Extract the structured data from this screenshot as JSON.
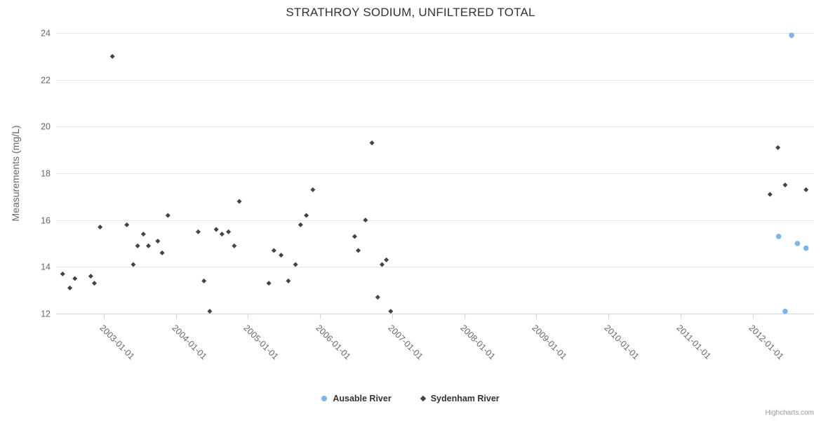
{
  "chart_data": {
    "type": "scatter",
    "title": "STRATHROY SODIUM, UNFILTERED TOTAL",
    "xlabel": "",
    "ylabel": "Measurements (mg/L)",
    "ylim": [
      12,
      24
    ],
    "yticks": [
      12,
      14,
      16,
      18,
      20,
      22,
      24
    ],
    "xlim_decimal_years": [
      2002.34,
      2012.85
    ],
    "xticks": [
      {
        "value": 2003,
        "label": "2003-01-01"
      },
      {
        "value": 2004,
        "label": "2004-01-01"
      },
      {
        "value": 2005,
        "label": "2005-01-01"
      },
      {
        "value": 2006,
        "label": "2006-01-01"
      },
      {
        "value": 2007,
        "label": "2007-01-01"
      },
      {
        "value": 2008,
        "label": "2008-01-01"
      },
      {
        "value": 2009,
        "label": "2009-01-01"
      },
      {
        "value": 2010,
        "label": "2010-01-01"
      },
      {
        "value": 2011,
        "label": "2011-01-01"
      },
      {
        "value": 2012,
        "label": "2012-01-01"
      }
    ],
    "grid": true,
    "legend_position": "bottom-center",
    "x_label_rotation_deg": 45,
    "series": [
      {
        "name": "Ausable River",
        "marker": "circle",
        "color": "#7cb5ec",
        "points": [
          {
            "x": 2012.36,
            "y": 15.3
          },
          {
            "x": 2012.45,
            "y": 12.1
          },
          {
            "x": 2012.54,
            "y": 23.9
          },
          {
            "x": 2012.62,
            "y": 15.0
          },
          {
            "x": 2012.74,
            "y": 14.8
          }
        ]
      },
      {
        "name": "Sydenham River",
        "marker": "diamond",
        "color": "#434348",
        "points": [
          {
            "x": 2002.43,
            "y": 13.7
          },
          {
            "x": 2002.53,
            "y": 13.1
          },
          {
            "x": 2002.6,
            "y": 13.5
          },
          {
            "x": 2002.82,
            "y": 13.6
          },
          {
            "x": 2002.87,
            "y": 13.3
          },
          {
            "x": 2002.95,
            "y": 15.7
          },
          {
            "x": 2003.12,
            "y": 23.0
          },
          {
            "x": 2003.32,
            "y": 15.8
          },
          {
            "x": 2003.41,
            "y": 14.1
          },
          {
            "x": 2003.47,
            "y": 14.9
          },
          {
            "x": 2003.55,
            "y": 15.4
          },
          {
            "x": 2003.62,
            "y": 14.9
          },
          {
            "x": 2003.75,
            "y": 15.1
          },
          {
            "x": 2003.81,
            "y": 14.6
          },
          {
            "x": 2003.89,
            "y": 16.2
          },
          {
            "x": 2004.31,
            "y": 15.5
          },
          {
            "x": 2004.39,
            "y": 13.4
          },
          {
            "x": 2004.47,
            "y": 12.1
          },
          {
            "x": 2004.56,
            "y": 15.6
          },
          {
            "x": 2004.64,
            "y": 15.4
          },
          {
            "x": 2004.73,
            "y": 15.5
          },
          {
            "x": 2004.81,
            "y": 14.9
          },
          {
            "x": 2004.88,
            "y": 16.8
          },
          {
            "x": 2005.29,
            "y": 13.3
          },
          {
            "x": 2005.36,
            "y": 14.7
          },
          {
            "x": 2005.46,
            "y": 14.5
          },
          {
            "x": 2005.56,
            "y": 13.4
          },
          {
            "x": 2005.66,
            "y": 14.1
          },
          {
            "x": 2005.73,
            "y": 15.8
          },
          {
            "x": 2005.81,
            "y": 16.2
          },
          {
            "x": 2005.9,
            "y": 17.3
          },
          {
            "x": 2006.48,
            "y": 15.3
          },
          {
            "x": 2006.53,
            "y": 14.7
          },
          {
            "x": 2006.63,
            "y": 16.0
          },
          {
            "x": 2006.72,
            "y": 19.3
          },
          {
            "x": 2006.8,
            "y": 12.7
          },
          {
            "x": 2006.86,
            "y": 14.1
          },
          {
            "x": 2006.92,
            "y": 14.3
          },
          {
            "x": 2006.98,
            "y": 12.1
          },
          {
            "x": 2012.24,
            "y": 17.1
          },
          {
            "x": 2012.35,
            "y": 19.1
          },
          {
            "x": 2012.45,
            "y": 17.5
          },
          {
            "x": 2012.74,
            "y": 17.3
          }
        ]
      }
    ]
  },
  "credits": {
    "label": "Highcharts.com"
  },
  "colors": {
    "background": "#ffffff",
    "grid": "#e6e6e6",
    "axis_line": "#ccd6eb",
    "tick": "#ccd6eb",
    "title_text": "#333333",
    "axis_label_text": "#666666",
    "legend_text": "#333333",
    "credits_text": "#999999",
    "ausable_river": "#7cb5ec",
    "sydenham_river": "#434348"
  }
}
